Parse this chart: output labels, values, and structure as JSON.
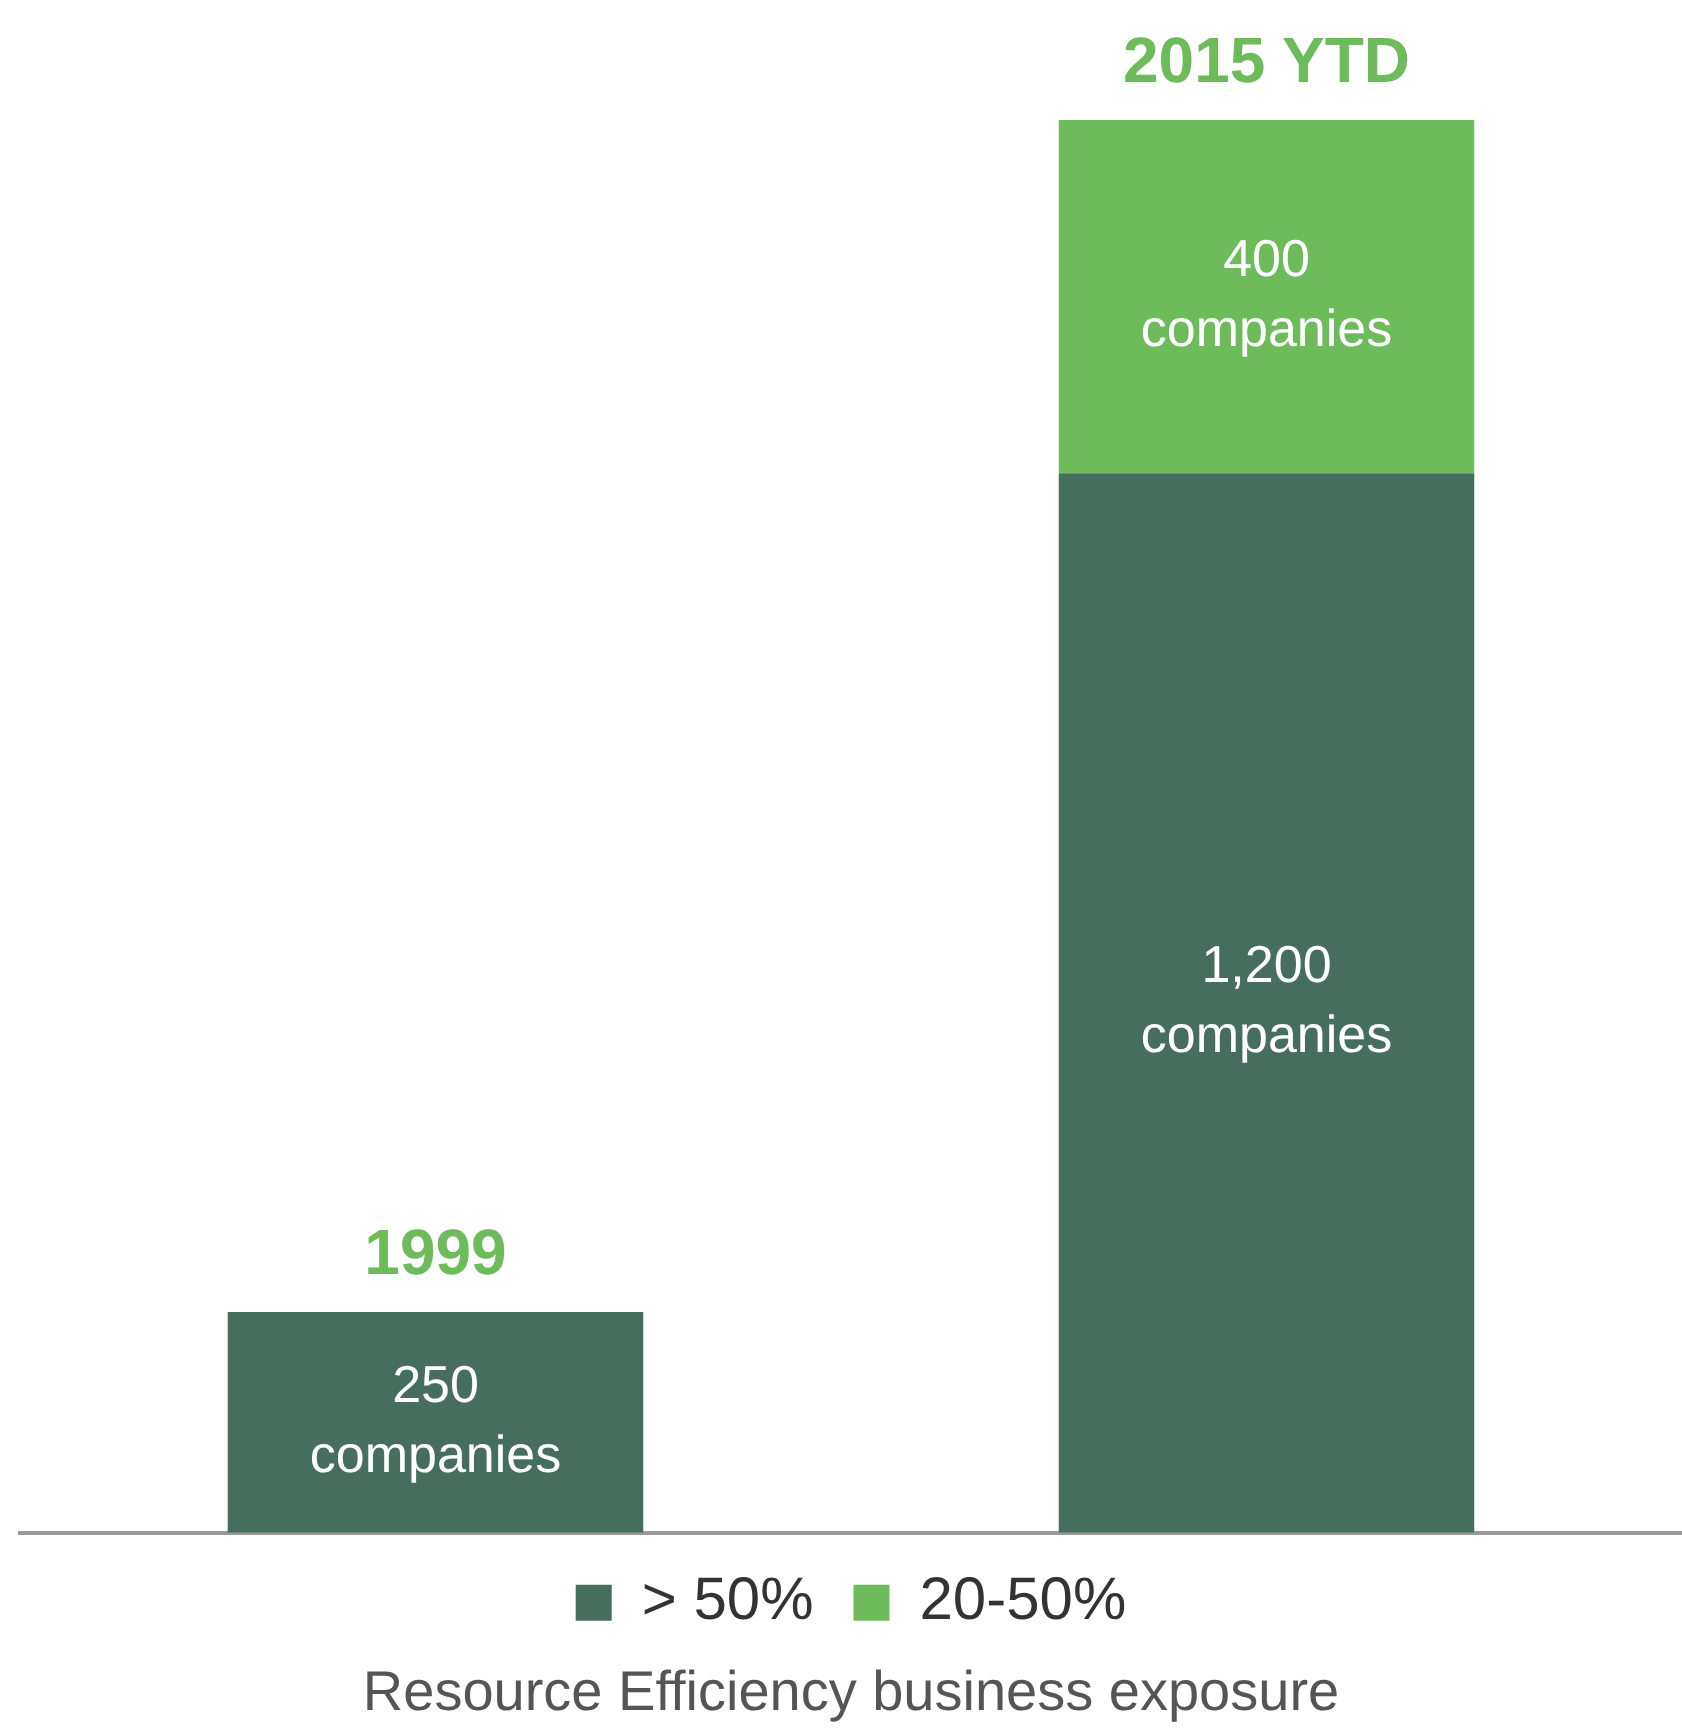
{
  "chart_data": {
    "type": "bar",
    "stacked": true,
    "categories": [
      "1999",
      "2015 YTD"
    ],
    "series": [
      {
        "name": "> 50%",
        "color": "#466e5f",
        "values": [
          250,
          1200
        ],
        "value_labels": [
          "250 companies",
          "1,200 companies"
        ]
      },
      {
        "name": "20-50%",
        "color": "#6dbb5a",
        "values": [
          null,
          400
        ],
        "value_labels": [
          null,
          "400 companies"
        ]
      }
    ],
    "xlabel": "Resource Efficiency business exposure",
    "legend": "bottom",
    "grid": false
  }
}
